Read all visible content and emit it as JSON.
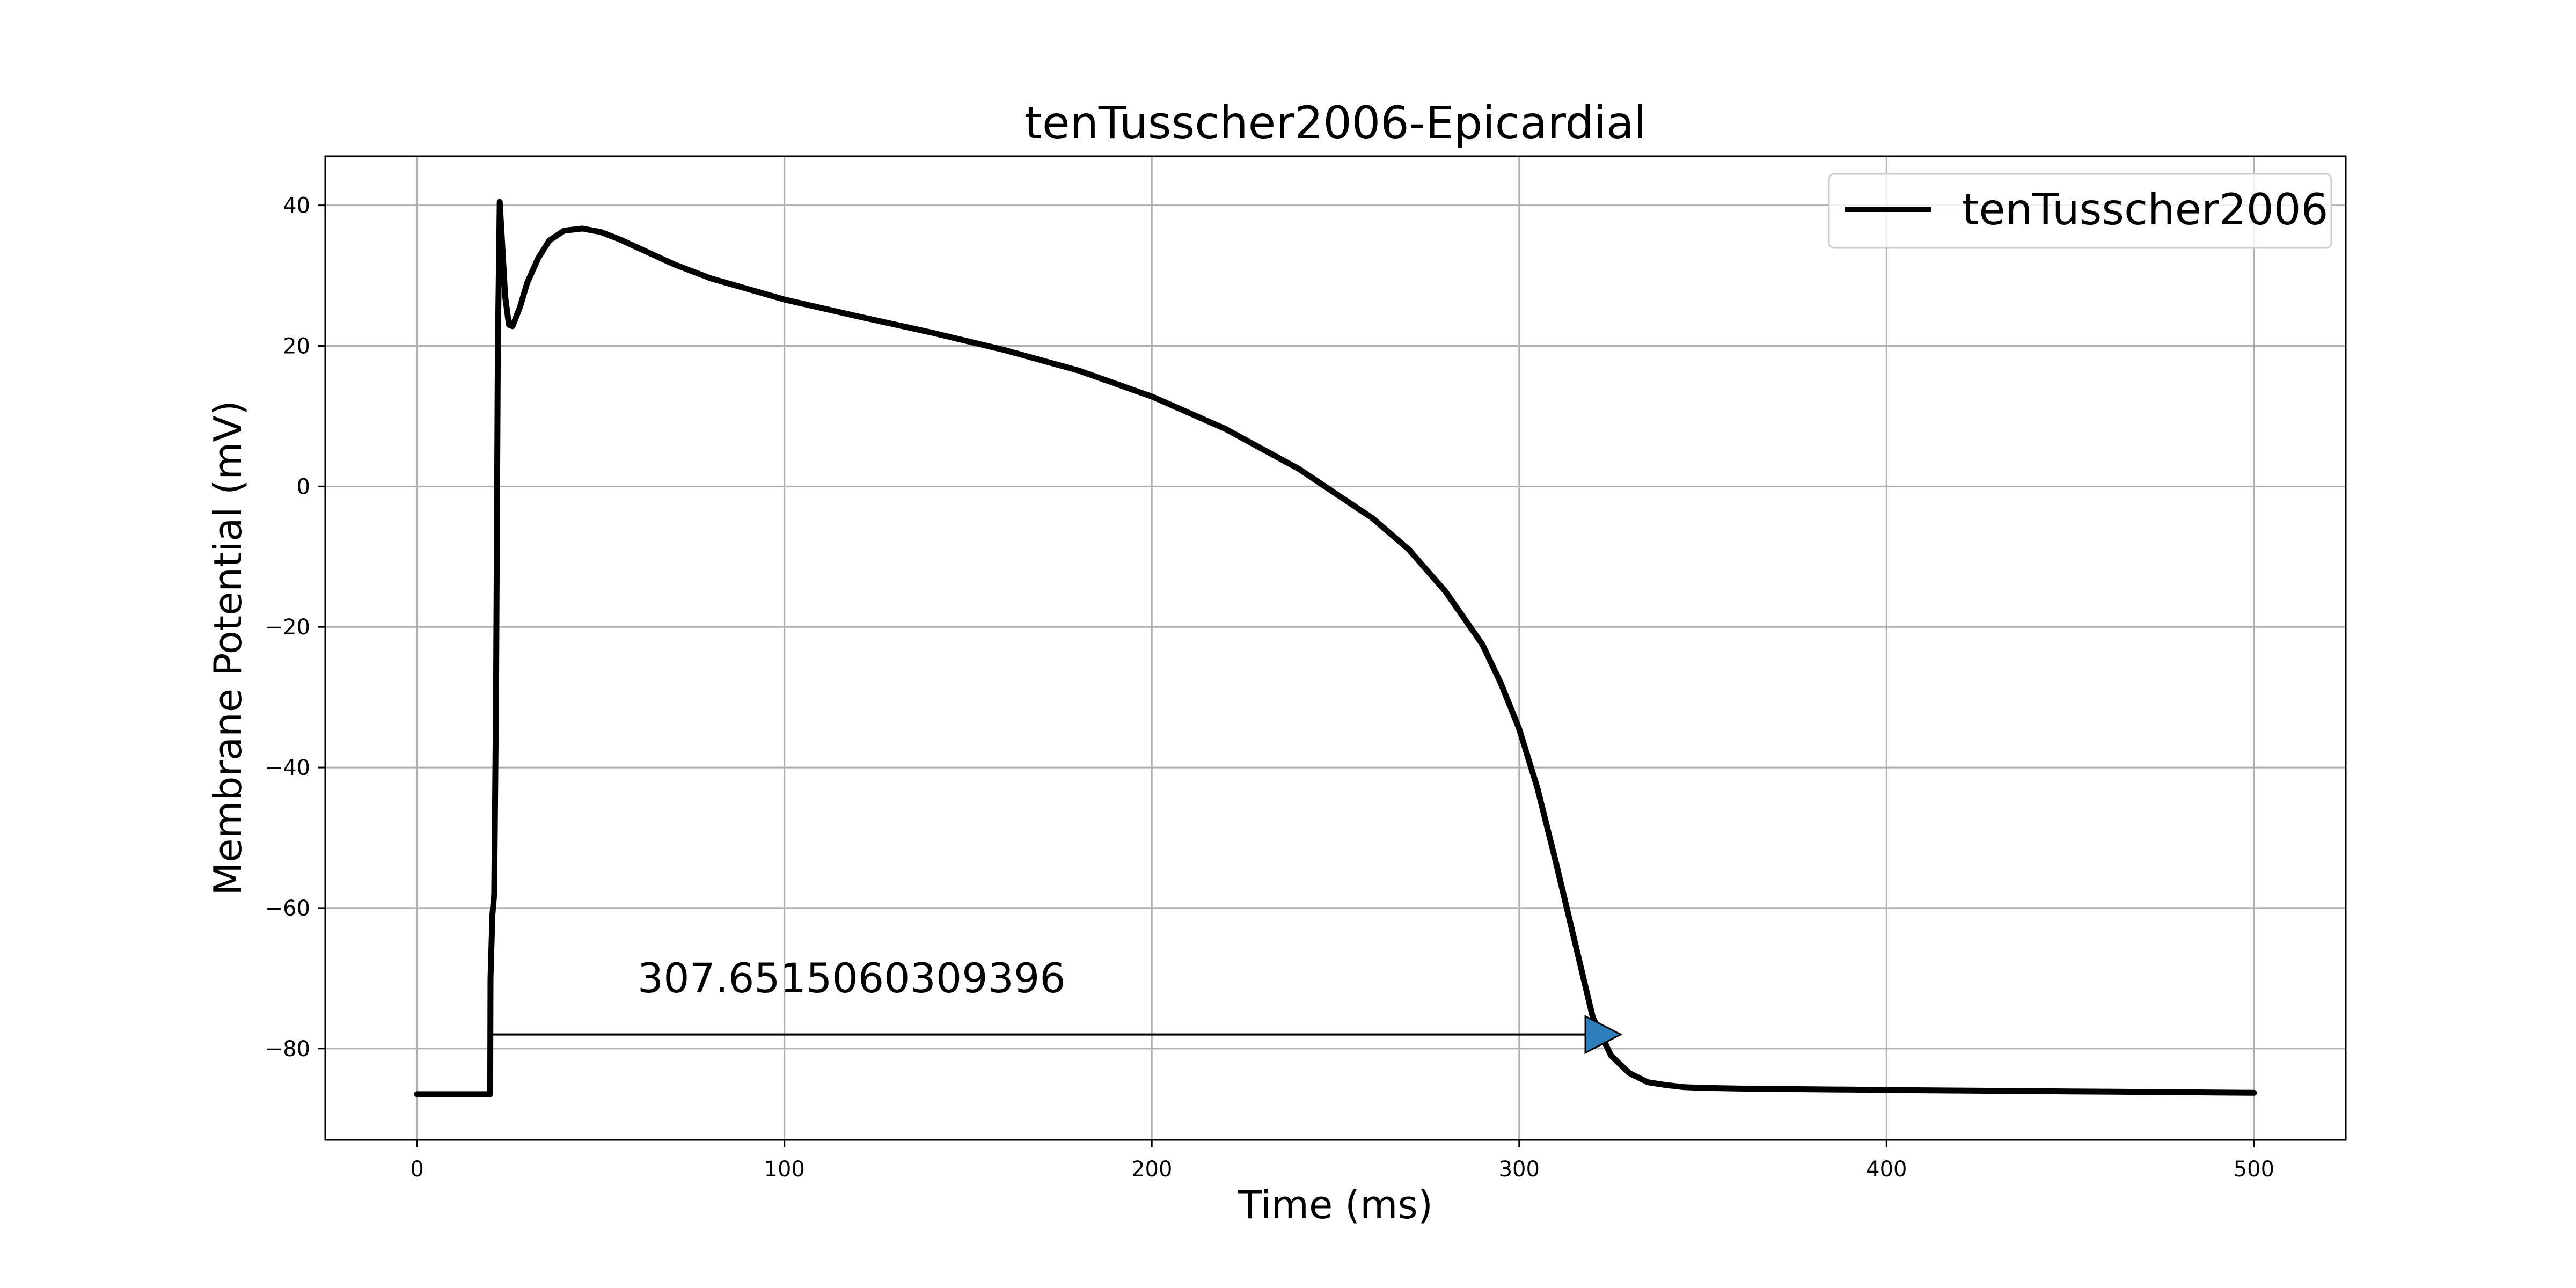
{
  "chart_data": {
    "type": "line",
    "title": "tenTusscher2006-Epicardial",
    "xlabel": "Time (ms)",
    "ylabel": "Membrane Potential (mV)",
    "xlim": [
      -25,
      525
    ],
    "ylim": [
      -93,
      47
    ],
    "xticks": [
      0,
      100,
      200,
      300,
      400,
      500
    ],
    "yticks": [
      40,
      20,
      0,
      -20,
      -40,
      -60,
      -80
    ],
    "grid": true,
    "legend_position": "top-right",
    "series": [
      {
        "name": "tenTusscher2006",
        "color": "#000000",
        "x": [
          0,
          19.9,
          20,
          20.5,
          21,
          21.5,
          22,
          22.5,
          23,
          24,
          25,
          26,
          28,
          30,
          33,
          36,
          40,
          45,
          50,
          55,
          60,
          70,
          80,
          100,
          120,
          140,
          160,
          180,
          200,
          220,
          240,
          260,
          270,
          280,
          290,
          295,
          300,
          305,
          310,
          315,
          320,
          325,
          330,
          335,
          340,
          345,
          350,
          360,
          380,
          400,
          450,
          500
        ],
        "y": [
          -86.5,
          -86.5,
          -70.0,
          -61.0,
          -58.0,
          -30.0,
          20.0,
          40.5,
          36.0,
          27.0,
          23.0,
          22.8,
          25.5,
          29.0,
          32.5,
          35.0,
          36.4,
          36.7,
          36.2,
          35.2,
          34.0,
          31.6,
          29.6,
          26.6,
          24.2,
          21.9,
          19.4,
          16.5,
          12.8,
          8.2,
          2.5,
          -4.5,
          -9.0,
          -15.0,
          -22.5,
          -28.0,
          -34.5,
          -43.0,
          -53.5,
          -64.5,
          -75.5,
          -81.0,
          -83.5,
          -84.8,
          -85.2,
          -85.5,
          -85.6,
          -85.7,
          -85.8,
          -85.9,
          -86.1,
          -86.3
        ]
      }
    ],
    "annotation": {
      "text": "307.6515060309396",
      "arrow_start": [
        20,
        -78
      ],
      "arrow_end": [
        327.65,
        -78
      ],
      "text_anchor": [
        60,
        -72
      ],
      "color": "#000000",
      "marker_color": "#2e7ebc"
    },
    "grid_color": "#b0b0b0"
  }
}
